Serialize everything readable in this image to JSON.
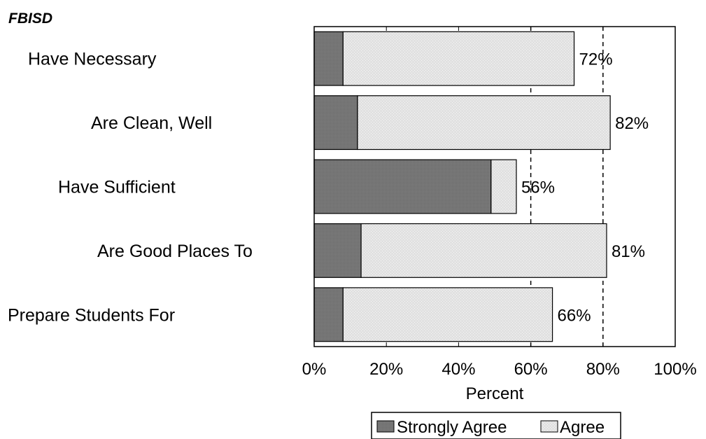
{
  "chart_data": {
    "type": "bar",
    "orientation": "horizontal",
    "stacked": true,
    "title": "FBISD",
    "xlabel": "Percent",
    "ylabel": "",
    "xlim": [
      0,
      100
    ],
    "x_ticks": [
      "0%",
      "20%",
      "40%",
      "60%",
      "80%",
      "100%"
    ],
    "categories": [
      "Have Necessary",
      "Are Clean, Well",
      "Have Sufficient",
      "Are Good Places To",
      "Prepare Students For"
    ],
    "series": [
      {
        "name": "Strongly Agree",
        "values": [
          8,
          12,
          49,
          13,
          8
        ],
        "color": "#7a7a7a"
      },
      {
        "name": "Agree",
        "values": [
          64,
          70,
          7,
          68,
          58
        ],
        "color": "#e3e3e3"
      }
    ],
    "total_labels": [
      "72%",
      "82%",
      "56%",
      "81%",
      "66%"
    ],
    "reference_lines": [
      60,
      80
    ],
    "grid": false,
    "legend_position": "bottom"
  }
}
